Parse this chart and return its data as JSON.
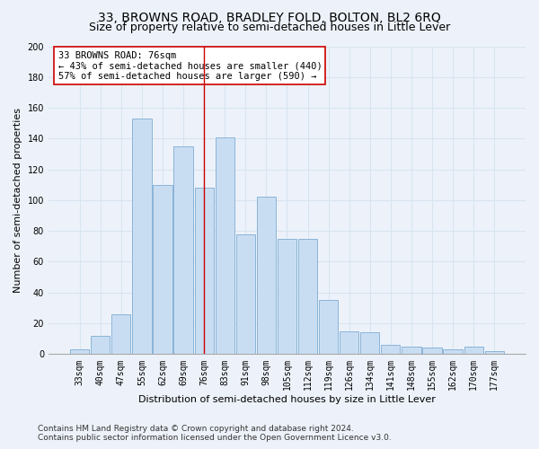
{
  "title": "33, BROWNS ROAD, BRADLEY FOLD, BOLTON, BL2 6RQ",
  "subtitle": "Size of property relative to semi-detached houses in Little Lever",
  "xlabel": "Distribution of semi-detached houses by size in Little Lever",
  "ylabel": "Number of semi-detached properties",
  "categories": [
    "33sqm",
    "40sqm",
    "47sqm",
    "55sqm",
    "62sqm",
    "69sqm",
    "76sqm",
    "83sqm",
    "91sqm",
    "98sqm",
    "105sqm",
    "112sqm",
    "119sqm",
    "126sqm",
    "134sqm",
    "141sqm",
    "148sqm",
    "155sqm",
    "162sqm",
    "170sqm",
    "177sqm"
  ],
  "values": [
    3,
    12,
    26,
    153,
    110,
    135,
    108,
    141,
    78,
    102,
    75,
    75,
    35,
    15,
    14,
    6,
    5,
    4,
    3,
    5,
    2
  ],
  "bar_color": "#c9ddf2",
  "bar_edge_color": "#8ab4d8",
  "highlight_line_index": 6,
  "annotation_text": "33 BROWNS ROAD: 76sqm\n← 43% of semi-detached houses are smaller (440)\n57% of semi-detached houses are larger (590) →",
  "annotation_box_color": "#ffffff",
  "annotation_box_edge": "#cc0000",
  "vline_color": "#cc0000",
  "ylim": [
    0,
    200
  ],
  "yticks": [
    0,
    20,
    40,
    60,
    80,
    100,
    120,
    140,
    160,
    180,
    200
  ],
  "footer1": "Contains HM Land Registry data © Crown copyright and database right 2024.",
  "footer2": "Contains public sector information licensed under the Open Government Licence v3.0.",
  "bg_color": "#edf2fa",
  "plot_bg_color": "#edf2fa",
  "grid_color": "#d8e4f0",
  "title_fontsize": 10,
  "subtitle_fontsize": 9,
  "axis_label_fontsize": 8,
  "tick_fontsize": 7,
  "annotation_fontsize": 7.5,
  "footer_fontsize": 6.5
}
